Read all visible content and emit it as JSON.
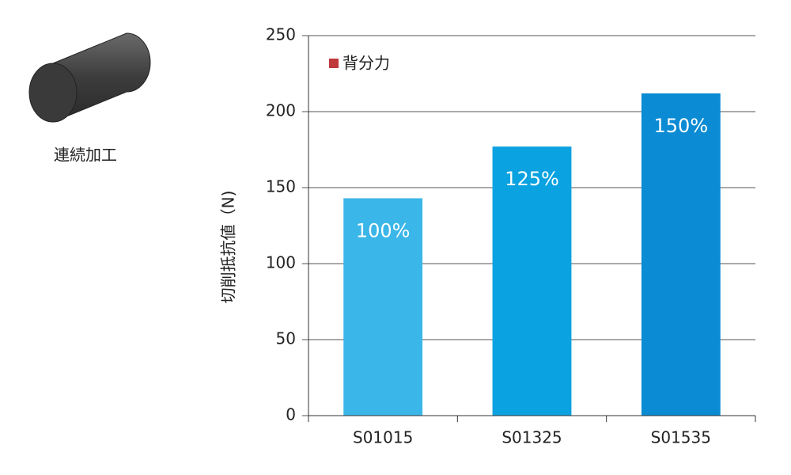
{
  "side_label": "連続加工",
  "chart_data": {
    "type": "bar",
    "y_label": "切削抵抗値（N)",
    "categories": [
      "S01015",
      "S01325",
      "S01535"
    ],
    "series": [
      {
        "name": "背分力",
        "color": "#c0393b",
        "values": [
          143,
          177,
          212
        ],
        "bar_colors": [
          "#3bb6e8",
          "#0aa2e0",
          "#0a8bd3"
        ]
      }
    ],
    "annotations": [
      "100%",
      "125%",
      "150%"
    ],
    "ylim": [
      0,
      250
    ],
    "yticks": [
      0,
      50,
      100,
      150,
      200,
      250
    ],
    "grid": true,
    "legend": "top-left"
  }
}
